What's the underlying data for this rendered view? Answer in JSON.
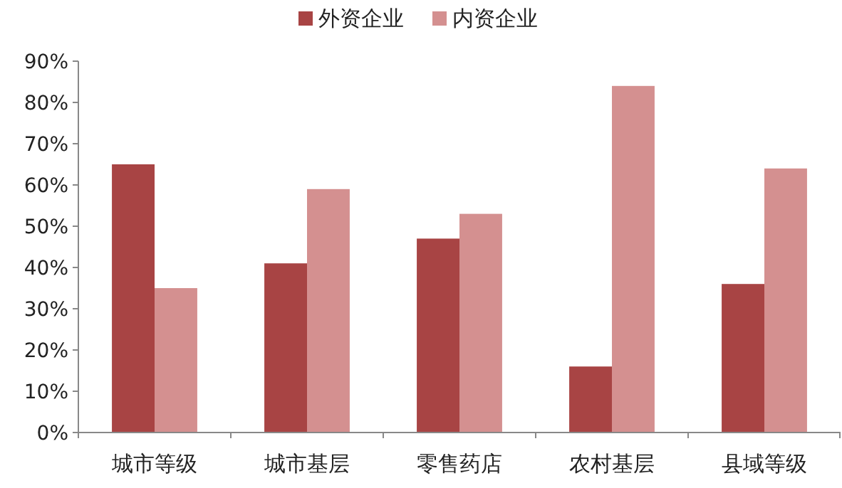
{
  "chart_data": {
    "type": "bar",
    "categories": [
      "城市等级",
      "城市基层",
      "零售药店",
      "农村基层",
      "县域等级"
    ],
    "series": [
      {
        "name": "外资企业",
        "color": "#a84444",
        "values": [
          65,
          41,
          47,
          16,
          36
        ]
      },
      {
        "name": "内资企业",
        "color": "#d49090",
        "values": [
          35,
          59,
          53,
          84,
          64
        ]
      }
    ],
    "ylim": [
      0,
      90
    ],
    "yticks": [
      {
        "value": 0,
        "label": "0%"
      },
      {
        "value": 10,
        "label": "10%"
      },
      {
        "value": 20,
        "label": "20%"
      },
      {
        "value": 30,
        "label": "30%"
      },
      {
        "value": 40,
        "label": "40%"
      },
      {
        "value": 50,
        "label": "50%"
      },
      {
        "value": 60,
        "label": "60%"
      },
      {
        "value": 70,
        "label": "70%"
      },
      {
        "value": 80,
        "label": "80%"
      },
      {
        "value": 90,
        "label": "90%"
      }
    ],
    "legend": "top"
  }
}
